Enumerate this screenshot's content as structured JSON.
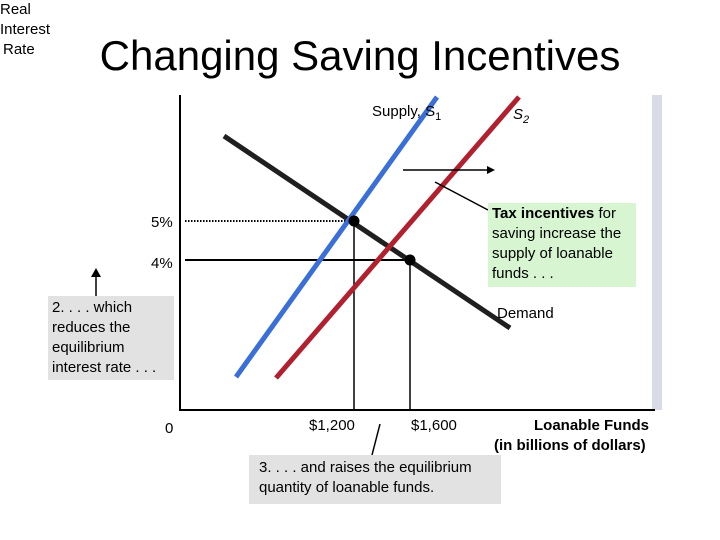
{
  "title": "Changing Saving Incentives",
  "y_axis_label": [
    "Real",
    "Interest",
    "Rate"
  ],
  "x_axis_label": [
    "Loanable Funds",
    "(in billions of dollars)"
  ],
  "origin_label": "0",
  "rate_labels": {
    "high": "5%",
    "low": "4%"
  },
  "quantity_labels": {
    "initial": "$1,200",
    "new": "$1,600"
  },
  "curves": {
    "supply1": {
      "label": "Supply, S",
      "subscript": "1",
      "color": "#3a6fd8"
    },
    "supply2": {
      "label": "S",
      "subscript": "2",
      "color": "#b0202e"
    },
    "demand": {
      "label": "Demand",
      "color": "#1f1f1f"
    }
  },
  "callouts": {
    "tax_bold": "Tax incentives",
    "tax_rest": " for saving increase the supply of loanable funds . . .",
    "rate": "2. . . . which reduces the equilibrium interest rate . . .",
    "quantity": "3. . . . and raises the equilibrium quantity of loanable funds."
  },
  "colors": {
    "tax_callout_bg": "#d6f5d0",
    "gray_callout_bg": "#e2e2e2",
    "panel_shadow": "#d9dbe6"
  }
}
